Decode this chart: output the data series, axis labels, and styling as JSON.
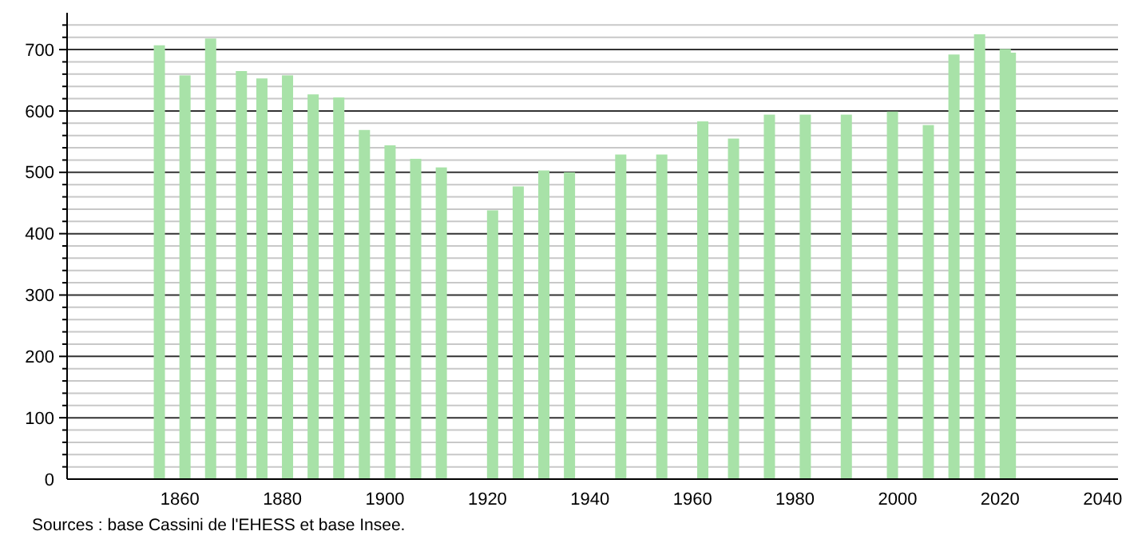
{
  "chart_data": {
    "type": "bar",
    "x": [
      1856,
      1861,
      1866,
      1872,
      1876,
      1881,
      1886,
      1891,
      1896,
      1901,
      1906,
      1911,
      1921,
      1926,
      1931,
      1936,
      1946,
      1954,
      1962,
      1968,
      1975,
      1982,
      1990,
      1999,
      2006,
      2011,
      2016,
      2021,
      2022
    ],
    "values": [
      707,
      658,
      718,
      665,
      653,
      658,
      627,
      622,
      569,
      544,
      522,
      508,
      438,
      477,
      503,
      500,
      529,
      529,
      583,
      555,
      594,
      594,
      594,
      599,
      577,
      692,
      725,
      701,
      695
    ],
    "color": "#a8e2a8",
    "xlim": [
      1838,
      2043
    ],
    "xticks": [
      1860,
      1880,
      1900,
      1920,
      1940,
      1960,
      1980,
      2000,
      2020,
      2040
    ],
    "ylim": [
      0,
      760
    ],
    "yticks": [
      0,
      {
        "value": 20,
        "label": null
      },
      {
        "value": 40,
        "label": null
      },
      {
        "value": 60,
        "label": null
      },
      {
        "value": 80,
        "label": null
      },
      100,
      {
        "value": 120,
        "label": null
      },
      {
        "value": 140,
        "label": null
      },
      {
        "value": 160,
        "label": null
      },
      {
        "value": 180,
        "label": null
      },
      200,
      {
        "value": 220,
        "label": null
      },
      {
        "value": 240,
        "label": null
      },
      {
        "value": 260,
        "label": null
      },
      {
        "value": 280,
        "label": null
      },
      300,
      {
        "value": 320,
        "label": null
      },
      {
        "value": 340,
        "label": null
      },
      {
        "value": 360,
        "label": null
      },
      {
        "value": 380,
        "label": null
      },
      400,
      {
        "value": 420,
        "label": null
      },
      {
        "value": 440,
        "label": null
      },
      {
        "value": 460,
        "label": null
      },
      {
        "value": 480,
        "label": null
      },
      500,
      {
        "value": 520,
        "label": null
      },
      {
        "value": 540,
        "label": null
      },
      {
        "value": 560,
        "label": null
      },
      {
        "value": 580,
        "label": null
      },
      600,
      {
        "value": 620,
        "label": null
      },
      {
        "value": 640,
        "label": null
      },
      {
        "value": 660,
        "label": null
      },
      {
        "value": 680,
        "label": null
      },
      700,
      {
        "value": 720,
        "label": null
      },
      {
        "value": 740,
        "label": null
      }
    ],
    "grid": "y",
    "annotations": [
      "Sources : base Cassini de l'EHESS et base Insee."
    ]
  }
}
